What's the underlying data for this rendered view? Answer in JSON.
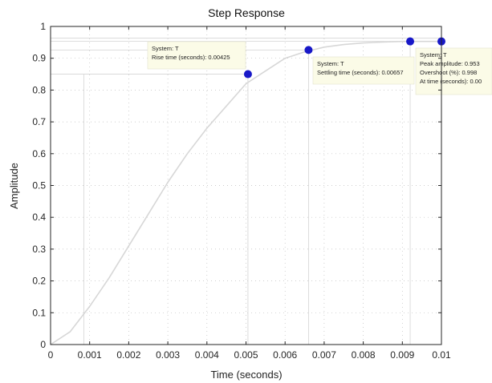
{
  "chart_data": {
    "type": "line",
    "title": "Step Response",
    "xlabel": "Time (seconds)",
    "ylabel": "Amplitude",
    "xlim": [
      0,
      0.01
    ],
    "ylim": [
      0,
      1
    ],
    "x_ticks": [
      "0",
      "0.001",
      "0.002",
      "0.003",
      "0.004",
      "0.005",
      "0.006",
      "0.007",
      "0.008",
      "0.009",
      "0.01"
    ],
    "y_ticks": [
      "0",
      "0.1",
      "0.2",
      "0.3",
      "0.4",
      "0.5",
      "0.6",
      "0.7",
      "0.8",
      "0.9",
      "1"
    ],
    "grid": true,
    "series": [
      {
        "x": [
          0,
          0.0005,
          0.001,
          0.0015,
          0.002,
          0.0025,
          0.003,
          0.0035,
          0.004,
          0.0045,
          0.005,
          0.0055,
          0.006,
          0.0065,
          0.007,
          0.0075,
          0.008,
          0.0085,
          0.009,
          0.0095,
          0.01
        ],
        "y": [
          0,
          0.04,
          0.12,
          0.21,
          0.31,
          0.41,
          0.51,
          0.6,
          0.68,
          0.75,
          0.82,
          0.86,
          0.9,
          0.92,
          0.935,
          0.943,
          0.948,
          0.951,
          0.953,
          0.953,
          0.953
        ]
      }
    ],
    "markers": [
      {
        "x": 0.00505,
        "y": 0.85,
        "lines": [
          "System: T",
          "Rise time (seconds): 0.00425"
        ]
      },
      {
        "x": 0.0066,
        "y": 0.926,
        "lines": [
          "System: T",
          "Settling time (seconds): 0.00657"
        ]
      },
      {
        "x": 0.0092,
        "y": 0.953,
        "lines": []
      },
      {
        "x": 0.01,
        "y": 0.953,
        "lines": [
          "System: T",
          "Peak amplitude: 0.953",
          "Overshoot (%): 0.998",
          "At time (seconds): 0.00"
        ]
      }
    ],
    "reference_lines": {
      "rise_start_x": 0.00085,
      "rise_y": 0.85,
      "settle_y": 0.926,
      "band_y": [
        0.953,
        0.963
      ]
    },
    "colors": {
      "line": "#d7d7d7",
      "marker": "#1818c8",
      "grid": "#bdbdbd",
      "tip_bg": "#fbfbe7",
      "axis": "#262626"
    }
  }
}
